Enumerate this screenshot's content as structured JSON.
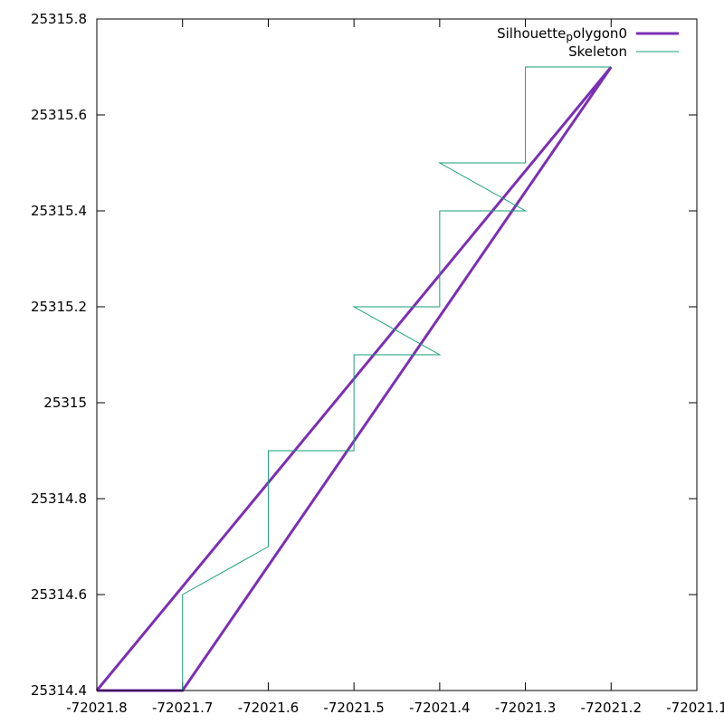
{
  "chart_data": {
    "type": "line",
    "title": "",
    "xlabel": "",
    "ylabel": "",
    "xlim": [
      -72021.8,
      -72021.1
    ],
    "ylim": [
      25314.4,
      25315.8
    ],
    "grid": false,
    "legend_position": "top-right",
    "x_ticks": [
      {
        "value": -72021.8,
        "label": "-72021.8"
      },
      {
        "value": -72021.7,
        "label": "-72021.7"
      },
      {
        "value": -72021.6,
        "label": "-72021.6"
      },
      {
        "value": -72021.5,
        "label": "-72021.5"
      },
      {
        "value": -72021.4,
        "label": "-72021.4"
      },
      {
        "value": -72021.3,
        "label": "-72021.3"
      },
      {
        "value": -72021.2,
        "label": "-72021.2"
      },
      {
        "value": -72021.1,
        "label": "-72021.1"
      }
    ],
    "y_ticks": [
      {
        "value": 25314.4,
        "label": "25314.4"
      },
      {
        "value": 25314.6,
        "label": "25314.6"
      },
      {
        "value": 25314.8,
        "label": "25314.8"
      },
      {
        "value": 25315.0,
        "label": "25315"
      },
      {
        "value": 25315.2,
        "label": "25315.2"
      },
      {
        "value": 25315.4,
        "label": "25315.4"
      },
      {
        "value": 25315.6,
        "label": "25315.6"
      },
      {
        "value": 25315.8,
        "label": "25315.8"
      }
    ],
    "series": [
      {
        "name": "Silhouette_polygon0",
        "legend_main": "Silhouette",
        "legend_sub": "p",
        "legend_tail": "olygon0",
        "color": "#7b2fb5",
        "style": "thick",
        "points": [
          [
            -72021.8,
            25314.4
          ],
          [
            -72021.7,
            25314.4
          ],
          [
            -72021.2,
            25315.7
          ],
          [
            -72021.8,
            25314.4
          ]
        ]
      },
      {
        "name": "Skeleton",
        "color": "#1a9e78",
        "style": "thin",
        "points": [
          [
            -72021.8,
            25314.4
          ],
          [
            -72021.7,
            25314.4
          ],
          [
            -72021.7,
            25314.6
          ],
          [
            -72021.6,
            25314.7
          ],
          [
            -72021.6,
            25314.9
          ],
          [
            -72021.5,
            25314.9
          ],
          [
            -72021.5,
            25315.1
          ],
          [
            -72021.4,
            25315.1
          ],
          [
            -72021.5,
            25315.2
          ],
          [
            -72021.4,
            25315.2
          ],
          [
            -72021.4,
            25315.4
          ],
          [
            -72021.3,
            25315.4
          ],
          [
            -72021.4,
            25315.5
          ],
          [
            -72021.3,
            25315.5
          ],
          [
            -72021.3,
            25315.7
          ],
          [
            -72021.2,
            25315.7
          ]
        ]
      }
    ]
  }
}
